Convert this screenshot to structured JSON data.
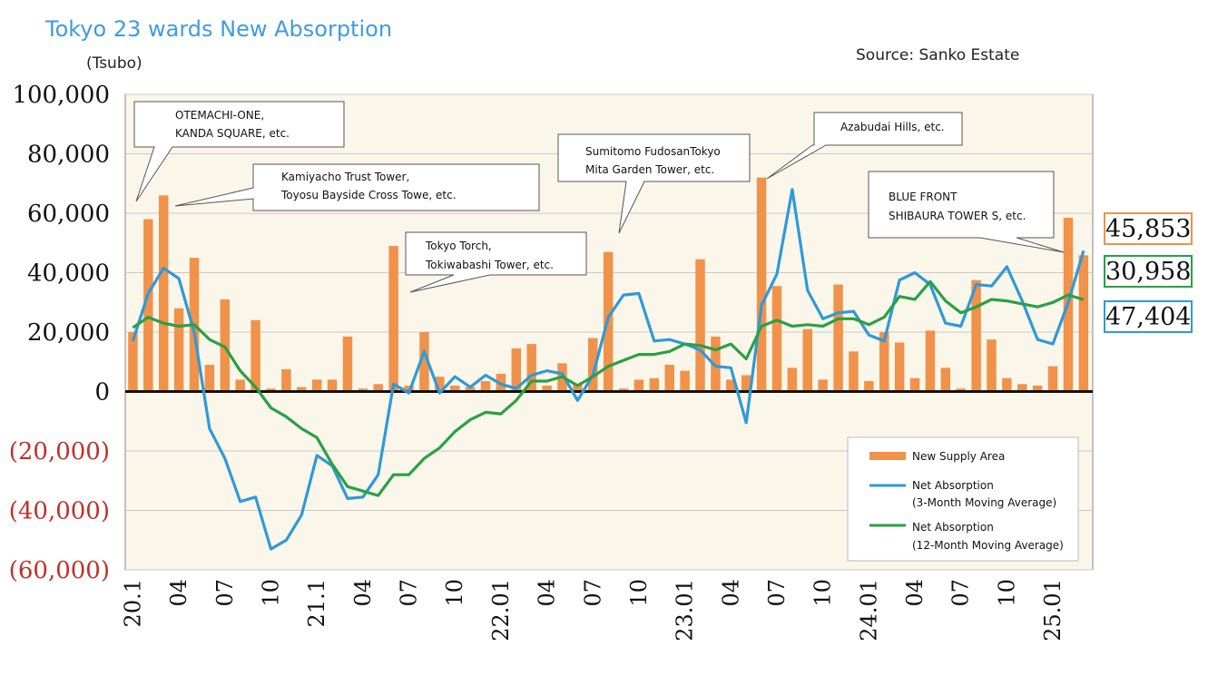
{
  "title": "Tokyo 23 wards New Absorption",
  "unit_label": "(Tsubo)",
  "source": "Source: Sanko Estate",
  "colors": {
    "bar": "#f0924a",
    "net3": "#2e9ad8",
    "net12": "#2aa045",
    "negative_tick": "#c0302b",
    "plot_bg": "#fbf6ea",
    "grid": "#c9c9c9"
  },
  "chart_data": {
    "type": "bar",
    "ylim": [
      -60000,
      100000
    ],
    "yticks": [
      {
        "value": 100000,
        "label": "100,000",
        "negative": false
      },
      {
        "value": 80000,
        "label": "80,000",
        "negative": false
      },
      {
        "value": 60000,
        "label": "60,000",
        "negative": false
      },
      {
        "value": 40000,
        "label": "40,000",
        "negative": false
      },
      {
        "value": 20000,
        "label": "20,000",
        "negative": false
      },
      {
        "value": 0,
        "label": "0",
        "negative": false
      },
      {
        "value": -20000,
        "label": "(20,000)",
        "negative": true
      },
      {
        "value": -40000,
        "label": "(40,000)",
        "negative": true
      },
      {
        "value": -60000,
        "label": "(60,000)",
        "negative": true
      }
    ],
    "grid": true,
    "months": [
      "20.1",
      "20.2",
      "20.3",
      "20.4",
      "20.5",
      "20.6",
      "20.7",
      "20.8",
      "20.9",
      "20.10",
      "20.11",
      "20.12",
      "21.1",
      "21.2",
      "21.3",
      "21.4",
      "21.5",
      "21.6",
      "21.7",
      "21.8",
      "21.9",
      "21.10",
      "21.11",
      "21.12",
      "22.01",
      "22.02",
      "22.03",
      "22.04",
      "22.05",
      "22.06",
      "22.07",
      "22.08",
      "22.09",
      "22.10",
      "22.11",
      "22.12",
      "23.01",
      "23.02",
      "23.03",
      "23.04",
      "23.05",
      "23.06",
      "23.07",
      "23.08",
      "23.09",
      "23.10",
      "23.11",
      "23.12",
      "24.01",
      "24.02",
      "24.03",
      "24.04",
      "24.05",
      "24.06",
      "24.07",
      "24.08",
      "24.09",
      "24.10",
      "24.11",
      "24.12",
      "25.01",
      "25.02",
      "25.03"
    ],
    "xtick_labels": [
      {
        "index": 0,
        "label": "20.1"
      },
      {
        "index": 3,
        "label": "04"
      },
      {
        "index": 6,
        "label": "07"
      },
      {
        "index": 9,
        "label": "10"
      },
      {
        "index": 12,
        "label": "21.1"
      },
      {
        "index": 15,
        "label": "04"
      },
      {
        "index": 18,
        "label": "07"
      },
      {
        "index": 21,
        "label": "10"
      },
      {
        "index": 24,
        "label": "22.01"
      },
      {
        "index": 27,
        "label": "04"
      },
      {
        "index": 30,
        "label": "07"
      },
      {
        "index": 33,
        "label": "10"
      },
      {
        "index": 36,
        "label": "23.01"
      },
      {
        "index": 39,
        "label": "04"
      },
      {
        "index": 42,
        "label": "07"
      },
      {
        "index": 45,
        "label": "10"
      },
      {
        "index": 48,
        "label": "24.01"
      },
      {
        "index": 51,
        "label": "04"
      },
      {
        "index": 54,
        "label": "07"
      },
      {
        "index": 57,
        "label": "10"
      },
      {
        "index": 60,
        "label": "25.01"
      }
    ],
    "series": [
      {
        "name": "New Supply Area",
        "type": "bar",
        "values": [
          20000,
          58000,
          66000,
          28000,
          45000,
          9000,
          31000,
          4000,
          24000,
          1000,
          7500,
          1500,
          4000,
          4000,
          18500,
          1000,
          2500,
          49000,
          2000,
          20000,
          5000,
          2000,
          1500,
          3500,
          6000,
          14500,
          16000,
          2000,
          9500,
          2500,
          18000,
          47000,
          1000,
          4000,
          4500,
          9000,
          7000,
          44500,
          18500,
          4000,
          5500,
          72000,
          35500,
          8000,
          21000,
          4000,
          36000,
          13500,
          3500,
          20000,
          16500,
          4500,
          20500,
          8000,
          1000,
          37500,
          17500,
          4500,
          2500,
          2000,
          8500,
          58500,
          45853
        ]
      },
      {
        "name": "Net Absorption (3-Month Moving Average)",
        "type": "line",
        "values": [
          17000,
          33000,
          41500,
          38000,
          20000,
          -12500,
          -22500,
          -37000,
          -35500,
          -53000,
          -50000,
          -41500,
          -21500,
          -25000,
          -36000,
          -35500,
          -28000,
          2500,
          -500,
          13500,
          -500,
          5000,
          1500,
          5500,
          2500,
          1000,
          5500,
          7000,
          6000,
          -3000,
          5500,
          25000,
          32500,
          33000,
          17000,
          17500,
          16000,
          14000,
          8500,
          8000,
          -10500,
          29000,
          39500,
          68000,
          34000,
          24500,
          26500,
          27000,
          19000,
          17000,
          37500,
          40000,
          36000,
          23000,
          22000,
          36000,
          35500,
          42000,
          30500,
          17500,
          16000,
          30000,
          47404
        ]
      },
      {
        "name": "Net Absorption (12-Month Moving Average)",
        "type": "line",
        "values": [
          21500,
          25000,
          23000,
          22000,
          22500,
          17500,
          15000,
          7000,
          1500,
          -5500,
          -8500,
          -12500,
          -15500,
          -24500,
          -32000,
          -33500,
          -35000,
          -28000,
          -28000,
          -22500,
          -19000,
          -13500,
          -9500,
          -7000,
          -7500,
          -3000,
          3500,
          3500,
          5000,
          2000,
          5000,
          8500,
          10500,
          12500,
          12500,
          13500,
          16000,
          15500,
          14000,
          16000,
          11000,
          22000,
          24000,
          22000,
          22500,
          22000,
          24500,
          24500,
          22500,
          25000,
          32000,
          31000,
          37000,
          30500,
          26500,
          28500,
          31000,
          30500,
          29500,
          28500,
          30000,
          32500,
          30958
        ]
      }
    ],
    "legend": {
      "placement": "bottom-right",
      "bar_label": "New Supply Area",
      "net3_line1": "Net Absorption",
      "net3_line2": "(3-Month Moving Average)",
      "net12_line1": "Net Absorption",
      "net12_line2": "(12-Month Moving Average)"
    },
    "annotations": [
      {
        "line1": "OTEMACHI-ONE,",
        "line2": "KANDA SQUARE, etc."
      },
      {
        "line1": "Kamiyacho Trust Tower,",
        "line2": "Toyosu Bayside Cross Towe, etc."
      },
      {
        "line1": "Tokyo Torch,",
        "line2": "Tokiwabashi Tower, etc."
      },
      {
        "line1": "Sumitomo FudosanTokyo",
        "line2": "Mita Garden Tower, etc."
      },
      {
        "line1": "Azabudai Hills, etc.",
        "line2": ""
      },
      {
        "line1": "BLUE FRONT",
        "line2": "SHIBAURA TOWER S, etc."
      }
    ],
    "latest_values": {
      "supply": "45,853",
      "net12": "30,958",
      "net3": "47,404"
    }
  }
}
